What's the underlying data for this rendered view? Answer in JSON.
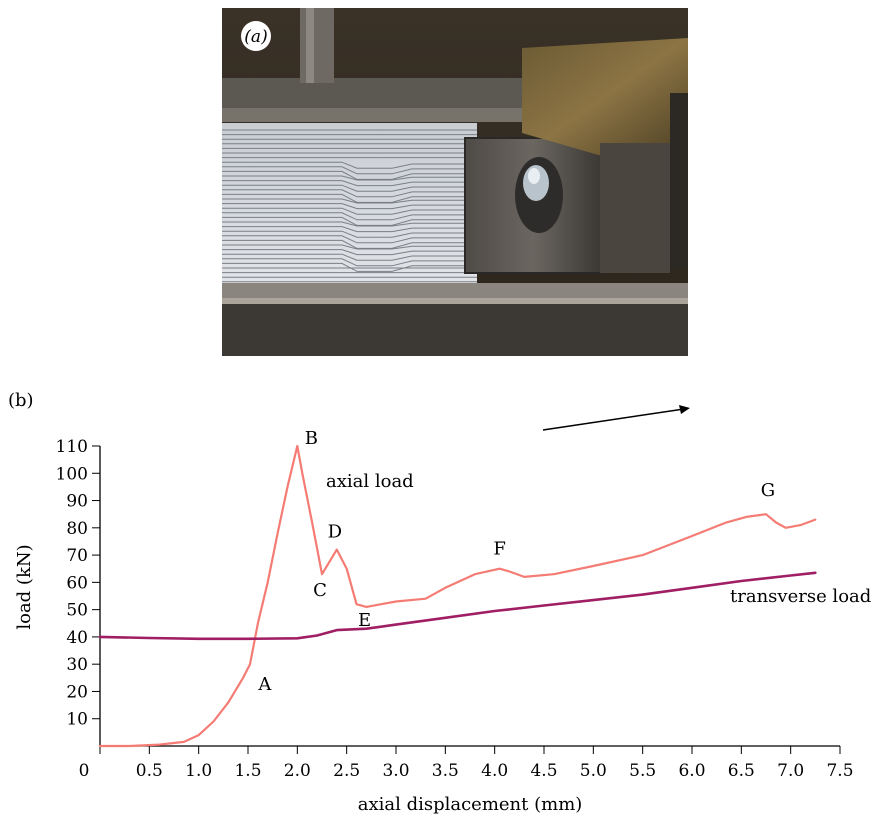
{
  "panel_a": {
    "label": "(a)"
  },
  "panel_b": {
    "label": "(b)"
  },
  "colors": {
    "axial": "#f47c74",
    "transverse": "#a01e63",
    "axis": "#000000"
  },
  "chart_data": {
    "type": "line",
    "title": "",
    "xlabel": "axial displacement (mm)",
    "ylabel": "load (kN)",
    "xlim": [
      0,
      7.5
    ],
    "ylim": [
      0,
      110
    ],
    "xticks": [
      "0",
      "0.5",
      "1.0",
      "1.5",
      "2.0",
      "2.5",
      "3.0",
      "3.5",
      "4.0",
      "4.5",
      "5.0",
      "5.5",
      "6.0",
      "6.5",
      "7.0",
      "7.5"
    ],
    "yticks": [
      "10",
      "20",
      "30",
      "40",
      "50",
      "60",
      "70",
      "80",
      "90",
      "100",
      "110"
    ],
    "grid": false,
    "series": [
      {
        "name": "axial load",
        "color": "#f47c74",
        "x": [
          0,
          0.3,
          0.6,
          0.85,
          1.0,
          1.15,
          1.3,
          1.45,
          1.52,
          1.6,
          1.7,
          1.8,
          1.9,
          2.0,
          2.05,
          2.15,
          2.25,
          2.4,
          2.5,
          2.6,
          2.7,
          2.85,
          3.0,
          3.3,
          3.5,
          3.8,
          4.05,
          4.15,
          4.3,
          4.6,
          5.0,
          5.5,
          6.0,
          6.35,
          6.55,
          6.75,
          6.85,
          6.95,
          7.1,
          7.25
        ],
        "y": [
          0,
          0,
          0.5,
          1.5,
          4,
          9,
          16,
          25,
          30,
          45,
          60,
          78,
          95,
          110,
          100,
          82,
          63,
          72,
          65,
          52,
          51,
          52,
          53,
          54,
          58,
          63,
          65,
          64,
          62,
          63,
          66,
          70,
          77,
          82,
          84,
          85,
          82,
          80,
          81,
          83
        ]
      },
      {
        "name": "transverse load",
        "color": "#a01e63",
        "x": [
          0,
          0.5,
          1.0,
          1.5,
          2.0,
          2.2,
          2.4,
          2.7,
          3.0,
          3.5,
          4.0,
          4.5,
          5.0,
          5.5,
          6.0,
          6.5,
          7.0,
          7.25
        ],
        "y": [
          40,
          39.6,
          39.3,
          39.3,
          39.5,
          40.5,
          42.5,
          43,
          44.5,
          47,
          49.5,
          51.5,
          53.5,
          55.5,
          58,
          60.5,
          62.5,
          63.5
        ]
      }
    ],
    "annotations": [
      {
        "text": "A",
        "x": 1.55,
        "y": 30
      },
      {
        "text": "B",
        "x": 2.0,
        "y": 110
      },
      {
        "text": "C",
        "x": 2.25,
        "y": 63
      },
      {
        "text": "D",
        "x": 2.4,
        "y": 72
      },
      {
        "text": "E",
        "x": 2.6,
        "y": 52
      },
      {
        "text": "F",
        "x": 4.05,
        "y": 65
      },
      {
        "text": "G",
        "x": 6.75,
        "y": 85
      }
    ],
    "series_labels": [
      "axial load",
      "transverse load"
    ]
  }
}
